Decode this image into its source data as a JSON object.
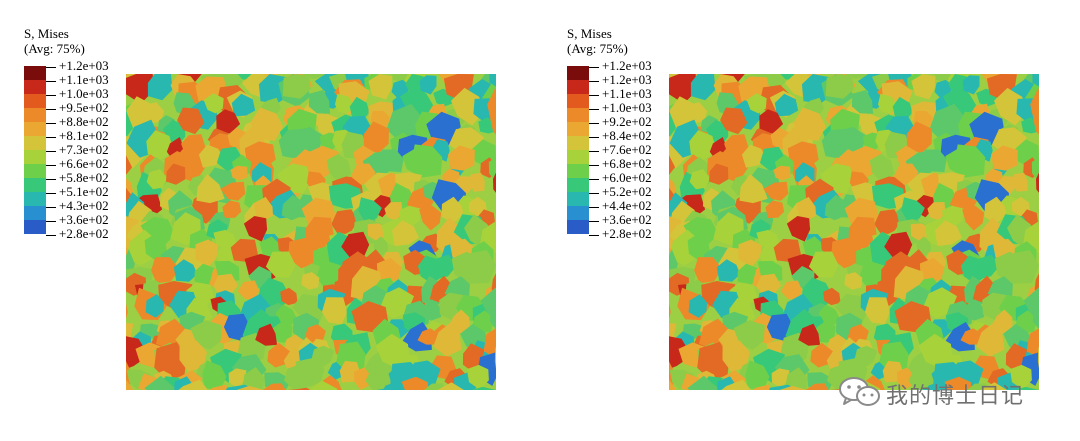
{
  "panels": [
    {
      "legend_title": "S, Mises",
      "legend_subtitle": "(Avg: 75%)",
      "legend_labels": [
        "+1.2e+03",
        "+1.1e+03",
        "+1.0e+03",
        "+9.5e+02",
        "+8.8e+02",
        "+8.1e+02",
        "+7.3e+02",
        "+6.6e+02",
        "+5.8e+02",
        "+5.1e+02",
        "+4.3e+02",
        "+3.6e+02",
        "+2.8e+02"
      ]
    },
    {
      "legend_title": "S, Mises",
      "legend_subtitle": "(Avg: 75%)",
      "legend_labels": [
        "+1.2e+03",
        "+1.2e+03",
        "+1.1e+03",
        "+1.0e+03",
        "+9.2e+02",
        "+8.4e+02",
        "+7.6e+02",
        "+6.8e+02",
        "+6.0e+02",
        "+5.2e+02",
        "+4.4e+02",
        "+3.6e+02",
        "+2.8e+02"
      ]
    }
  ],
  "colormap": [
    "#7a0c0c",
    "#c8281a",
    "#e25a1e",
    "#ec8a2a",
    "#eaa832",
    "#d4c43a",
    "#a8d23a",
    "#6ed04a",
    "#38c87a",
    "#28b8b0",
    "#2890d0",
    "#2a5cc8",
    "#1c1a6a"
  ],
  "watermark": {
    "text": "我的博士日记",
    "icon": "wechat-icon"
  }
}
